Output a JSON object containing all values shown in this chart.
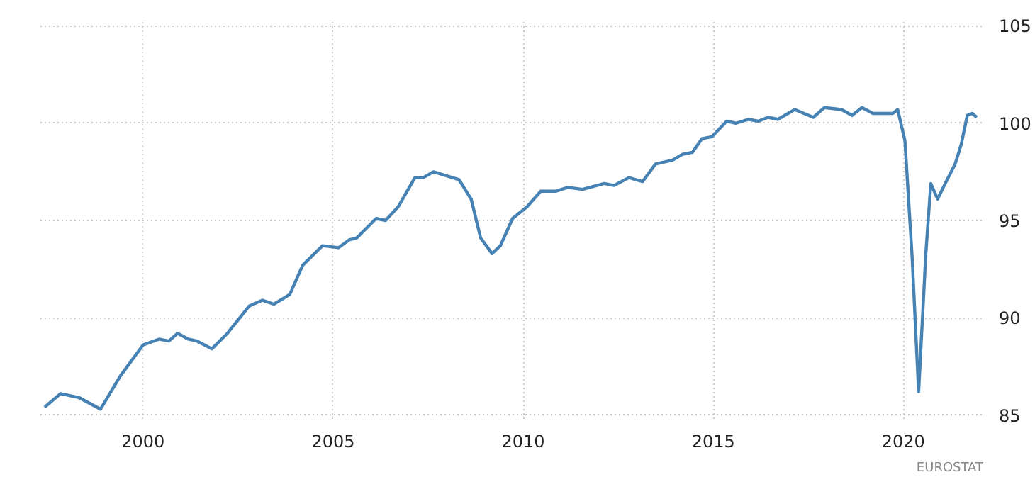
{
  "chart_data": {
    "type": "line",
    "x": [
      1997.41,
      1997.83,
      1998.31,
      1998.88,
      1999.4,
      2000.0,
      2000.42,
      2000.68,
      2000.91,
      2001.19,
      2001.42,
      2001.81,
      2002.22,
      2002.79,
      2003.14,
      2003.44,
      2003.86,
      2004.2,
      2004.72,
      2005.14,
      2005.42,
      2005.62,
      2006.13,
      2006.38,
      2006.71,
      2007.15,
      2007.37,
      2007.64,
      2008.31,
      2008.63,
      2008.88,
      2009.18,
      2009.4,
      2009.72,
      2010.1,
      2010.46,
      2010.85,
      2011.17,
      2011.56,
      2012.13,
      2012.39,
      2012.78,
      2013.14,
      2013.48,
      2013.93,
      2014.19,
      2014.45,
      2014.7,
      2014.96,
      2015.35,
      2015.6,
      2015.93,
      2016.18,
      2016.44,
      2016.7,
      2017.14,
      2017.63,
      2017.92,
      2018.37,
      2018.65,
      2018.91,
      2019.2,
      2019.72,
      2019.85,
      2020.04,
      2020.23,
      2020.4,
      2020.59,
      2020.72,
      2020.9,
      2021.1,
      2021.36,
      2021.52,
      2021.68,
      2021.81,
      2021.93
    ],
    "series": [
      {
        "color": "#4682b4",
        "values": [
          85.4,
          86.1,
          85.9,
          85.3,
          87.0,
          88.6,
          88.9,
          88.8,
          89.2,
          88.9,
          88.8,
          88.4,
          89.2,
          90.6,
          90.9,
          90.7,
          91.2,
          92.7,
          93.7,
          93.6,
          94.0,
          94.1,
          95.1,
          95.0,
          95.7,
          97.2,
          97.2,
          97.5,
          97.1,
          96.1,
          94.1,
          93.3,
          93.7,
          95.1,
          95.7,
          96.5,
          96.5,
          96.7,
          96.6,
          96.9,
          96.8,
          97.2,
          97.0,
          97.9,
          98.1,
          98.4,
          98.5,
          99.2,
          99.3,
          100.1,
          100.0,
          100.2,
          100.1,
          100.3,
          100.2,
          100.7,
          100.3,
          100.8,
          100.7,
          100.4,
          100.8,
          100.5,
          100.5,
          100.7,
          99.1,
          93.1,
          86.2,
          93.3,
          96.9,
          96.1,
          96.9,
          97.9,
          98.9,
          100.4,
          100.5,
          100.3
        ]
      }
    ],
    "xlim": [
      1997.3,
      2022.1
    ],
    "ylim": [
      84.8,
      105.2
    ],
    "xticks": [
      2000,
      2005,
      2010,
      2015,
      2020
    ],
    "yticks": [
      85,
      90,
      95,
      100,
      105
    ],
    "grid": true,
    "marker": "none",
    "line_style": "solid",
    "annotations": [
      "EUROSTAT"
    ]
  }
}
